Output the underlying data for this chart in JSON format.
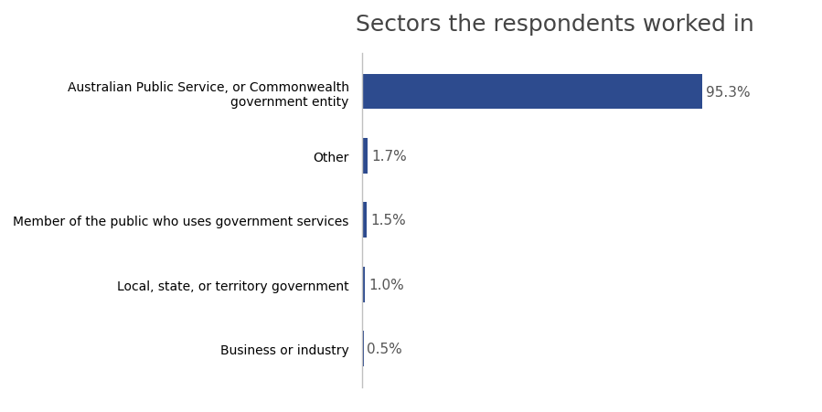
{
  "title": "Sectors the respondents worked in",
  "categories": [
    "Business or industry",
    "Local, state, or territory government",
    "Member of the public who uses government services",
    "Other",
    "Australian Public Service, or Commonwealth\ngovernment entity"
  ],
  "values": [
    0.5,
    1.0,
    1.5,
    1.7,
    95.3
  ],
  "bar_color": "#2d4b8e",
  "value_labels": [
    "0.5%",
    "1.0%",
    "1.5%",
    "1.7%",
    "95.3%"
  ],
  "title_fontsize": 18,
  "label_fontsize": 11,
  "value_fontsize": 11,
  "background_color": "#ffffff",
  "xlim": [
    0,
    108
  ],
  "bar_height": 0.55,
  "spine_color": "#c0c0c0"
}
